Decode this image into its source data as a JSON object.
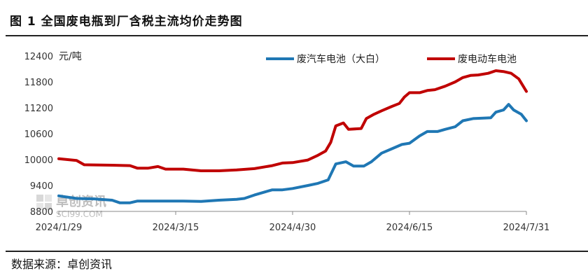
{
  "title": "图 1  全国废电瓶到厂含税主流均价走势图",
  "source": "数据来源：卓创资讯",
  "watermark": {
    "brand": "卓创资讯",
    "site": "SCI99.COM"
  },
  "chart_data": {
    "type": "line",
    "title": "图 1  全国废电瓶到厂含税主流均价走势图",
    "ylabel": "元/吨",
    "ylim": [
      8800,
      12400
    ],
    "yticks": [
      8800,
      9400,
      10000,
      10600,
      11200,
      11800,
      12400
    ],
    "xlim": [
      "2024-01-29",
      "2024-07-31"
    ],
    "xticks": [
      "2024/1/29",
      "2024/3/15",
      "2024/4/30",
      "2024/6/15",
      "2024/7/31"
    ],
    "xtick_dates": [
      "2024-01-29",
      "2024-03-15",
      "2024-04-30",
      "2024-06-15",
      "2024-07-31"
    ],
    "legend": "top",
    "series": [
      {
        "name": "废汽车电池（大白）",
        "color": "#1f77b4",
        "points": [
          [
            "2024-01-29",
            9160
          ],
          [
            "2024-02-05",
            9100
          ],
          [
            "2024-02-12",
            9090
          ],
          [
            "2024-02-19",
            9060
          ],
          [
            "2024-02-22",
            9000
          ],
          [
            "2024-02-26",
            9000
          ],
          [
            "2024-02-29",
            9040
          ],
          [
            "2024-03-04",
            9040
          ],
          [
            "2024-03-11",
            9040
          ],
          [
            "2024-03-18",
            9040
          ],
          [
            "2024-03-25",
            9030
          ],
          [
            "2024-04-01",
            9060
          ],
          [
            "2024-04-08",
            9080
          ],
          [
            "2024-04-11",
            9100
          ],
          [
            "2024-04-15",
            9180
          ],
          [
            "2024-04-19",
            9250
          ],
          [
            "2024-04-22",
            9300
          ],
          [
            "2024-04-26",
            9300
          ],
          [
            "2024-04-30",
            9330
          ],
          [
            "2024-05-06",
            9400
          ],
          [
            "2024-05-10",
            9450
          ],
          [
            "2024-05-14",
            9530
          ],
          [
            "2024-05-17",
            9900
          ],
          [
            "2024-05-21",
            9950
          ],
          [
            "2024-05-24",
            9850
          ],
          [
            "2024-05-28",
            9850
          ],
          [
            "2024-05-31",
            9950
          ],
          [
            "2024-06-04",
            10150
          ],
          [
            "2024-06-08",
            10250
          ],
          [
            "2024-06-12",
            10350
          ],
          [
            "2024-06-15",
            10380
          ],
          [
            "2024-06-19",
            10550
          ],
          [
            "2024-06-22",
            10650
          ],
          [
            "2024-06-26",
            10650
          ],
          [
            "2024-06-29",
            10700
          ],
          [
            "2024-07-03",
            10760
          ],
          [
            "2024-07-06",
            10900
          ],
          [
            "2024-07-10",
            10950
          ],
          [
            "2024-07-14",
            10960
          ],
          [
            "2024-07-17",
            10970
          ],
          [
            "2024-07-19",
            11100
          ],
          [
            "2024-07-22",
            11150
          ],
          [
            "2024-07-24",
            11280
          ],
          [
            "2024-07-26",
            11150
          ],
          [
            "2024-07-29",
            11050
          ],
          [
            "2024-07-31",
            10900
          ]
        ]
      },
      {
        "name": "废电动车电池",
        "color": "#c00000",
        "points": [
          [
            "2024-01-29",
            10020
          ],
          [
            "2024-02-05",
            9980
          ],
          [
            "2024-02-08",
            9880
          ],
          [
            "2024-02-19",
            9870
          ],
          [
            "2024-02-26",
            9860
          ],
          [
            "2024-02-29",
            9800
          ],
          [
            "2024-03-04",
            9800
          ],
          [
            "2024-03-08",
            9840
          ],
          [
            "2024-03-11",
            9780
          ],
          [
            "2024-03-18",
            9780
          ],
          [
            "2024-03-25",
            9740
          ],
          [
            "2024-04-01",
            9740
          ],
          [
            "2024-04-08",
            9760
          ],
          [
            "2024-04-15",
            9790
          ],
          [
            "2024-04-22",
            9860
          ],
          [
            "2024-04-26",
            9920
          ],
          [
            "2024-04-30",
            9930
          ],
          [
            "2024-05-06",
            9990
          ],
          [
            "2024-05-10",
            10100
          ],
          [
            "2024-05-13",
            10200
          ],
          [
            "2024-05-15",
            10400
          ],
          [
            "2024-05-17",
            10780
          ],
          [
            "2024-05-20",
            10850
          ],
          [
            "2024-05-22",
            10700
          ],
          [
            "2024-05-27",
            10720
          ],
          [
            "2024-05-29",
            10950
          ],
          [
            "2024-06-01",
            11050
          ],
          [
            "2024-06-04",
            11130
          ],
          [
            "2024-06-08",
            11230
          ],
          [
            "2024-06-11",
            11300
          ],
          [
            "2024-06-13",
            11450
          ],
          [
            "2024-06-15",
            11550
          ],
          [
            "2024-06-19",
            11550
          ],
          [
            "2024-06-22",
            11600
          ],
          [
            "2024-06-25",
            11620
          ],
          [
            "2024-06-29",
            11700
          ],
          [
            "2024-07-03",
            11800
          ],
          [
            "2024-07-06",
            11900
          ],
          [
            "2024-07-09",
            11950
          ],
          [
            "2024-07-12",
            11960
          ],
          [
            "2024-07-16",
            12000
          ],
          [
            "2024-07-19",
            12060
          ],
          [
            "2024-07-22",
            12040
          ],
          [
            "2024-07-25",
            12000
          ],
          [
            "2024-07-28",
            11870
          ],
          [
            "2024-07-31",
            11580
          ]
        ]
      }
    ]
  }
}
